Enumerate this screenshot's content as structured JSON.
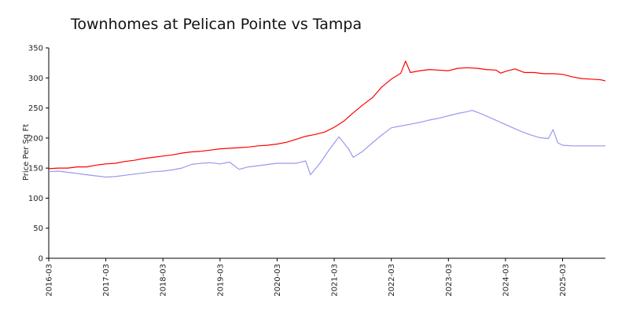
{
  "chart_data": {
    "type": "line",
    "title": "Townhomes at Pelican Pointe vs Tampa",
    "xlabel": "",
    "ylabel": "Price Per Sq Ft",
    "ylim": [
      0,
      350
    ],
    "yticks": [
      0,
      50,
      100,
      150,
      200,
      250,
      300,
      350
    ],
    "xlim": [
      "2016-03",
      "2025-12"
    ],
    "xticks": [
      "2016-03",
      "2017-03",
      "2018-03",
      "2019-03",
      "2020-03",
      "2021-03",
      "2022-03",
      "2023-03",
      "2024-03",
      "2025-03"
    ],
    "grid": false,
    "legend": "none",
    "series": [
      {
        "name": "Townhomes at Pelican Pointe",
        "color": "#ff0000",
        "points": [
          [
            "2016-03",
            149
          ],
          [
            "2016-05",
            150
          ],
          [
            "2016-07",
            150
          ],
          [
            "2016-09",
            152
          ],
          [
            "2016-11",
            152
          ],
          [
            "2017-01",
            155
          ],
          [
            "2017-03",
            157
          ],
          [
            "2017-05",
            158
          ],
          [
            "2017-07",
            161
          ],
          [
            "2017-09",
            163
          ],
          [
            "2017-11",
            166
          ],
          [
            "2018-01",
            168
          ],
          [
            "2018-03",
            170
          ],
          [
            "2018-05",
            172
          ],
          [
            "2018-07",
            175
          ],
          [
            "2018-09",
            177
          ],
          [
            "2018-11",
            178
          ],
          [
            "2019-01",
            180
          ],
          [
            "2019-03",
            182
          ],
          [
            "2019-05",
            183
          ],
          [
            "2019-07",
            184
          ],
          [
            "2019-09",
            185
          ],
          [
            "2019-11",
            187
          ],
          [
            "2020-01",
            188
          ],
          [
            "2020-03",
            190
          ],
          [
            "2020-05",
            193
          ],
          [
            "2020-07",
            198
          ],
          [
            "2020-09",
            203
          ],
          [
            "2020-11",
            206
          ],
          [
            "2021-01",
            210
          ],
          [
            "2021-03",
            218
          ],
          [
            "2021-05",
            228
          ],
          [
            "2021-07",
            242
          ],
          [
            "2021-09",
            255
          ],
          [
            "2021-11",
            267
          ],
          [
            "2022-01",
            285
          ],
          [
            "2022-03",
            298
          ],
          [
            "2022-05",
            308
          ],
          [
            "2022-06",
            328
          ],
          [
            "2022-07",
            309
          ],
          [
            "2022-09",
            312
          ],
          [
            "2022-11",
            314
          ],
          [
            "2023-01",
            313
          ],
          [
            "2023-03",
            312
          ],
          [
            "2023-05",
            316
          ],
          [
            "2023-07",
            317
          ],
          [
            "2023-09",
            316
          ],
          [
            "2023-11",
            314
          ],
          [
            "2024-01",
            313
          ],
          [
            "2024-02",
            308
          ],
          [
            "2024-03",
            311
          ],
          [
            "2024-05",
            315
          ],
          [
            "2024-07",
            309
          ],
          [
            "2024-09",
            309
          ],
          [
            "2024-11",
            307
          ],
          [
            "2025-01",
            307
          ],
          [
            "2025-03",
            306
          ],
          [
            "2025-05",
            302
          ],
          [
            "2025-07",
            299
          ],
          [
            "2025-09",
            298
          ],
          [
            "2025-11",
            297
          ],
          [
            "2025-12",
            295
          ]
        ]
      },
      {
        "name": "Tampa",
        "color": "#9999ee",
        "points": [
          [
            "2016-03",
            144
          ],
          [
            "2016-05",
            145
          ],
          [
            "2016-07",
            143
          ],
          [
            "2016-09",
            141
          ],
          [
            "2016-11",
            139
          ],
          [
            "2017-01",
            137
          ],
          [
            "2017-03",
            135
          ],
          [
            "2017-05",
            136
          ],
          [
            "2017-07",
            138
          ],
          [
            "2017-09",
            140
          ],
          [
            "2017-11",
            142
          ],
          [
            "2018-01",
            144
          ],
          [
            "2018-03",
            145
          ],
          [
            "2018-05",
            147
          ],
          [
            "2018-07",
            150
          ],
          [
            "2018-09",
            156
          ],
          [
            "2018-11",
            158
          ],
          [
            "2019-01",
            159
          ],
          [
            "2019-03",
            157
          ],
          [
            "2019-05",
            160
          ],
          [
            "2019-07",
            148
          ],
          [
            "2019-09",
            152
          ],
          [
            "2019-11",
            154
          ],
          [
            "2020-01",
            156
          ],
          [
            "2020-03",
            158
          ],
          [
            "2020-05",
            158
          ],
          [
            "2020-07",
            158
          ],
          [
            "2020-09",
            162
          ],
          [
            "2020-10",
            139
          ],
          [
            "2020-12",
            158
          ],
          [
            "2021-02",
            181
          ],
          [
            "2021-04",
            202
          ],
          [
            "2021-06",
            182
          ],
          [
            "2021-07",
            168
          ],
          [
            "2021-09",
            178
          ],
          [
            "2021-11",
            192
          ],
          [
            "2022-01",
            205
          ],
          [
            "2022-03",
            217
          ],
          [
            "2022-05",
            220
          ],
          [
            "2022-07",
            223
          ],
          [
            "2022-09",
            226
          ],
          [
            "2022-11",
            230
          ],
          [
            "2023-01",
            233
          ],
          [
            "2023-03",
            237
          ],
          [
            "2023-05",
            241
          ],
          [
            "2023-07",
            244
          ],
          [
            "2023-08",
            246
          ],
          [
            "2023-10",
            240
          ],
          [
            "2023-12",
            233
          ],
          [
            "2024-02",
            226
          ],
          [
            "2024-04",
            219
          ],
          [
            "2024-06",
            212
          ],
          [
            "2024-08",
            206
          ],
          [
            "2024-10",
            201
          ],
          [
            "2024-12",
            199
          ],
          [
            "2025-01",
            214
          ],
          [
            "2025-02",
            192
          ],
          [
            "2025-03",
            188
          ],
          [
            "2025-05",
            187
          ],
          [
            "2025-07",
            187
          ],
          [
            "2025-09",
            187
          ],
          [
            "2025-12",
            187
          ]
        ]
      }
    ]
  }
}
